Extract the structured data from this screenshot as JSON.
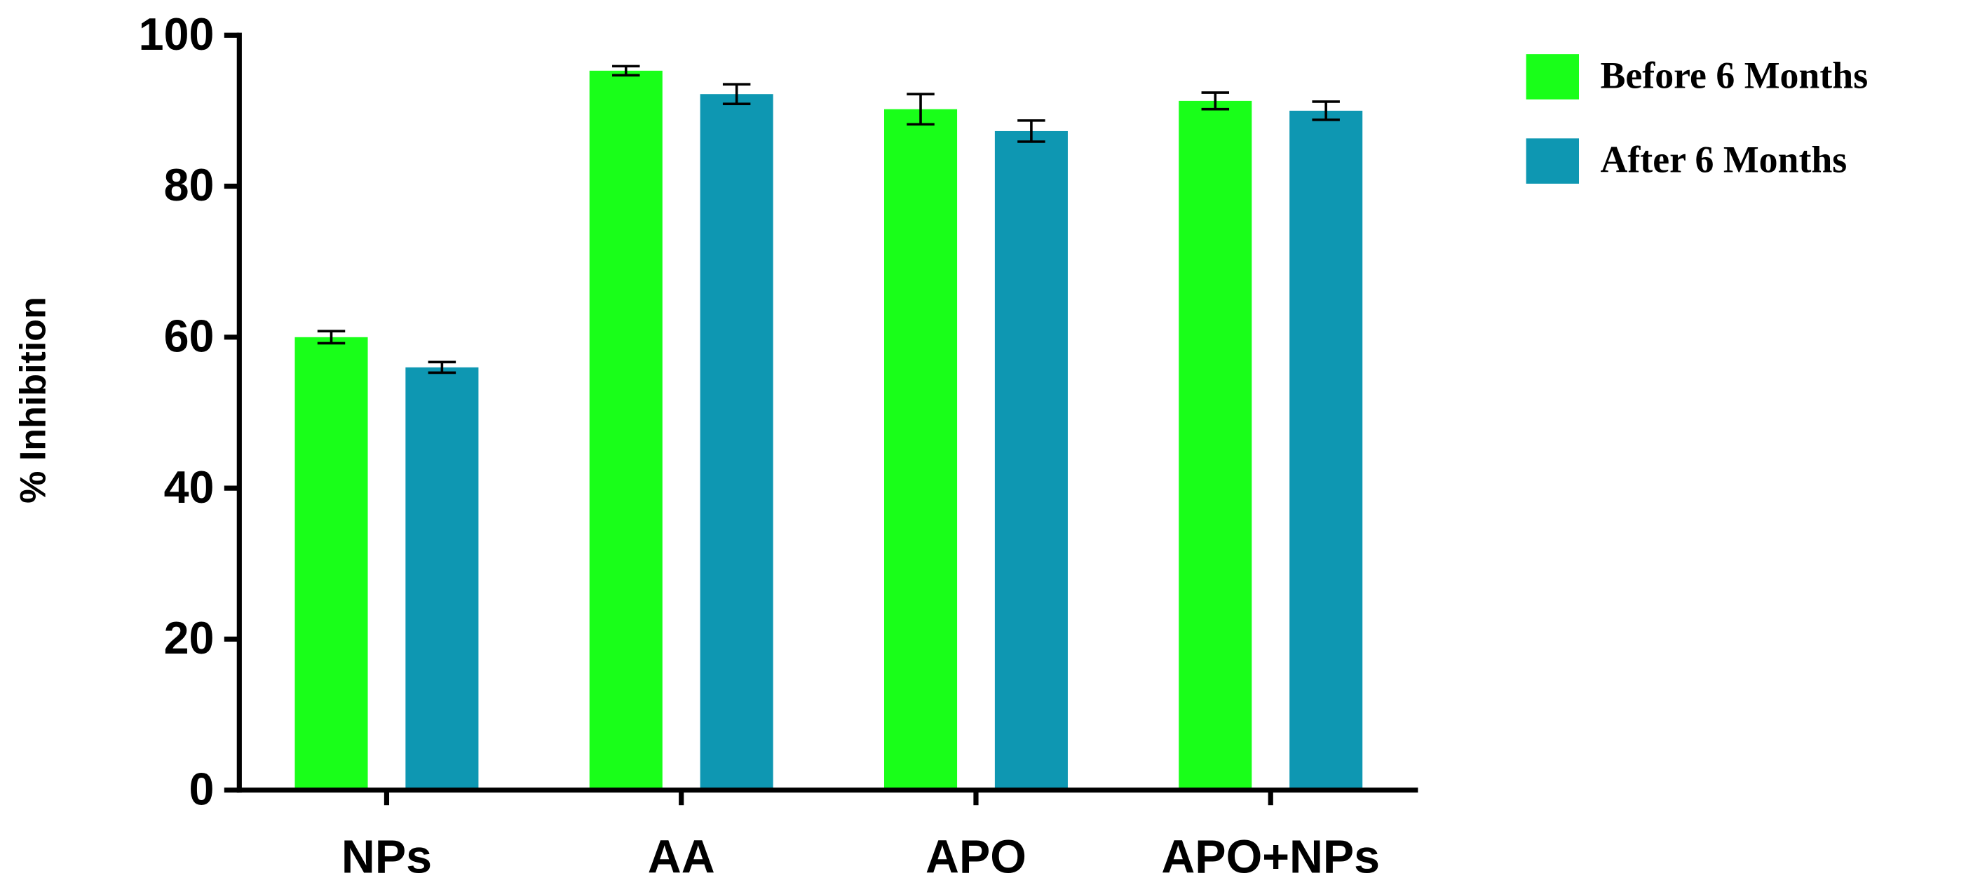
{
  "chart_data": {
    "type": "bar",
    "y_label": "% Inhibition",
    "categories": [
      "NPs",
      "AA",
      "APO",
      "APO+NPs"
    ],
    "series": [
      {
        "name": "Before 6 Months",
        "color": "#19ff19",
        "values": [
          60,
          95.3,
          90.2,
          91.3
        ],
        "errors": [
          0.8,
          0.6,
          2,
          1.1
        ]
      },
      {
        "name": "After 6 Months",
        "color": "#0e97b2",
        "values": [
          56,
          92.2,
          87.3,
          90
        ],
        "errors": [
          0.7,
          1.3,
          1.4,
          1.2
        ]
      }
    ],
    "ylim": [
      0,
      100
    ],
    "yticks": [
      0,
      20,
      40,
      60,
      80,
      100
    ],
    "legend": "right"
  }
}
